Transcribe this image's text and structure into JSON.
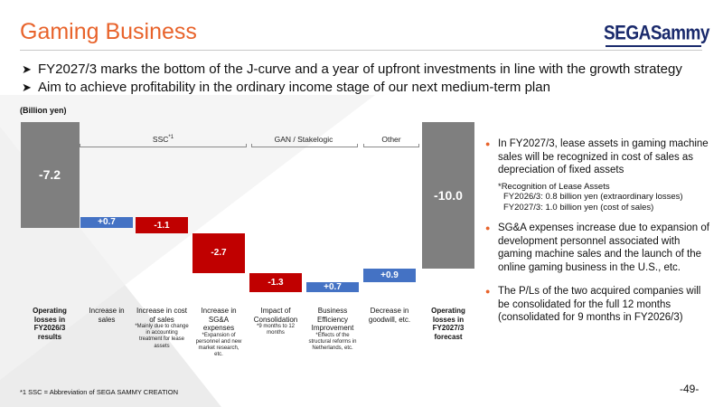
{
  "title": "Gaming Business",
  "logo_text": "SEGASammy",
  "bullets": [
    "FY2027/3 marks the bottom of the J-curve and a year of upfront investments in line with the growth strategy",
    "Aim to achieve profitability in the ordinary income stage of our next medium-term plan"
  ],
  "unit": "(Billion yen)",
  "groups": {
    "ssc": "SSC",
    "ssc_sup": "*1",
    "gan": "GAN / Stakelogic",
    "other": "Other"
  },
  "chart_data": {
    "type": "waterfall",
    "unit": "Billion yen",
    "steps": [
      {
        "value": -7.2,
        "label": "-7.2",
        "kind": "total"
      },
      {
        "value": 0.7,
        "label": "+0.7",
        "kind": "increase"
      },
      {
        "value": -1.1,
        "label": "-1.1",
        "kind": "decrease"
      },
      {
        "value": -2.7,
        "label": "-2.7",
        "kind": "decrease"
      },
      {
        "value": -1.3,
        "label": "-1.3",
        "kind": "decrease"
      },
      {
        "value": 0.7,
        "label": "+0.7",
        "kind": "increase"
      },
      {
        "value": 0.9,
        "label": "+0.9",
        "kind": "increase"
      },
      {
        "value": -10.0,
        "label": "-10.0",
        "kind": "total"
      }
    ],
    "categories": [
      {
        "label": "Operating losses in FY2026/3 results",
        "note": "",
        "bold": true
      },
      {
        "label": "Increase in sales",
        "note": "",
        "bold": false
      },
      {
        "label": "Increase in cost of sales",
        "note": "*Mainly due to change in accounting treatment for lease assets",
        "bold": false
      },
      {
        "label": "Increase in SG&A expenses",
        "note": "*Expansion of personnel and new market research, etc.",
        "bold": false
      },
      {
        "label": "Impact of Consolidation",
        "note": "*9 months to 12 months",
        "bold": false
      },
      {
        "label": "Business Efficiency Improvement",
        "note": "*Effects of the structural reforms in Netherlands, etc.",
        "bold": false
      },
      {
        "label": "Decrease in goodwill, etc.",
        "note": "",
        "bold": false
      },
      {
        "label": "Operating losses in FY2027/3 forecast",
        "note": "",
        "bold": true
      }
    ],
    "colors": {
      "total": "#7f7f7f",
      "increase": "#4472c4",
      "decrease": "#c00000"
    }
  },
  "right_panel": {
    "item1": "In FY2027/3, lease assets in gaming machine sales will be recognized in cost of sales as depreciation of fixed assets",
    "sub_title": "*Recognition of Lease Assets",
    "sub_line1": "FY2026/3: 0.8 billion yen (extraordinary losses)",
    "sub_line2": "FY2027/3: 1.0 billion yen (cost of sales)",
    "item2": "SG&A expenses increase due to expansion of development personnel associated with gaming machine sales and the launch of the online gaming business in the U.S., etc.",
    "item3": "The P/Ls of the two acquired companies will be consolidated for the full 12 months (consolidated for 9 months in FY2026/3)"
  },
  "footnote": "*1 SSC = Abbreviation of SEGA SAMMY CREATION",
  "page_number": "-49-",
  "colors": {
    "accent": "#e8632b",
    "logo": "#1a2a6c"
  }
}
